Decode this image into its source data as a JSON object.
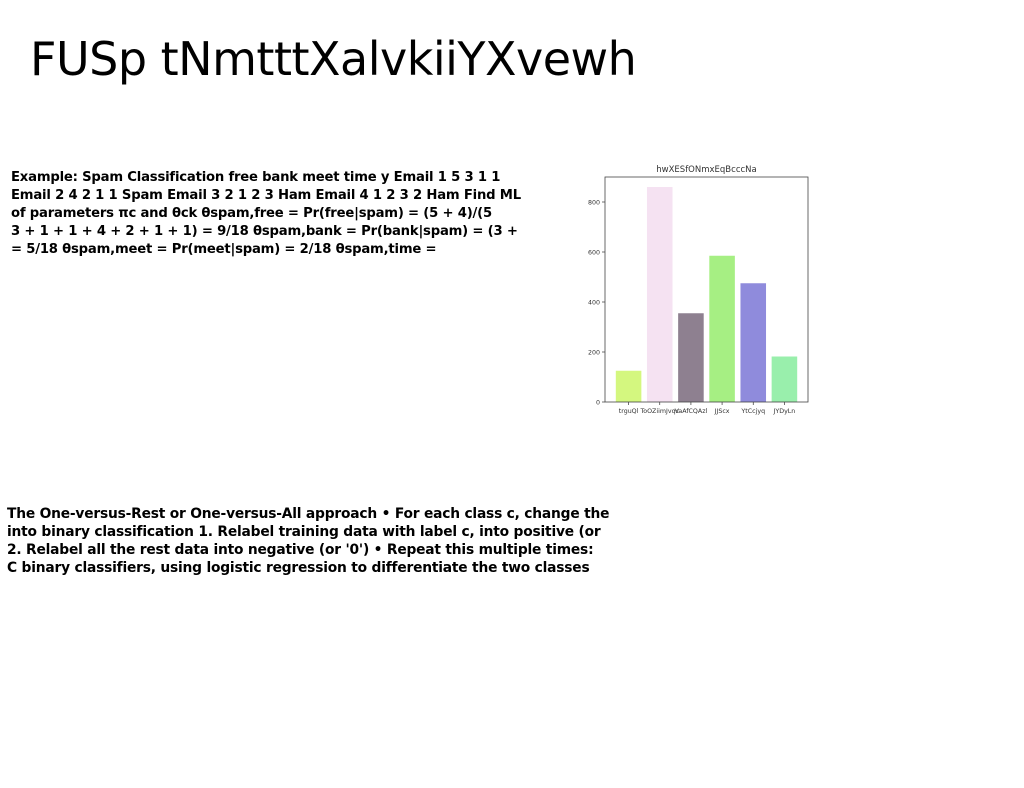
{
  "slide": {
    "title": "FUSp tNmtttXalvkiiYXvewh"
  },
  "block1": {
    "lines": [
      "Example: Spam Classification free bank meet time y Email 1 5 3 1 1",
      "Email 2 4 2 1 1 Spam Email 3 2 1 2 3 Ham Email 4 1 2 3 2 Ham Find ML",
      "of parameters πc and θck θspam,free = Pr(free|spam) = (5 + 4)/(5",
      "3 + 1 + 1 + 4 + 2 + 1 + 1) = 9/18 θspam,bank = Pr(bank|spam) = (3 +",
      "= 5/18 θspam,meet = Pr(meet|spam) = 2/18 θspam,time ="
    ]
  },
  "block2": {
    "lines": [
      "The One-versus-Rest or One-versus-All approach • For each class c, change the",
      "into binary classification 1. Relabel training data with label c, into positive (or",
      "2. Relabel all the rest data into negative (or '0') • Repeat this multiple times:",
      "C binary classifiers, using logistic regression to differentiate the two classes"
    ]
  },
  "chart_data": {
    "type": "bar",
    "title": "hwXESfONmxEqBcccNa",
    "categories": [
      "trguQl",
      "ToOZiimJvqc",
      "VaAfCQAzl",
      "JJScx",
      "YtCcjyq",
      "JYDyLn"
    ],
    "values": [
      125,
      860,
      355,
      585,
      475,
      182
    ],
    "colors": [
      "#d4f77f",
      "#f5e2f2",
      "#8e8090",
      "#a6ef83",
      "#8f8bdc",
      "#99efac"
    ],
    "ylim": [
      0,
      900
    ],
    "yticks": [
      0,
      200,
      400,
      600,
      800
    ],
    "xlabel": "",
    "ylabel": "",
    "grid": false
  }
}
